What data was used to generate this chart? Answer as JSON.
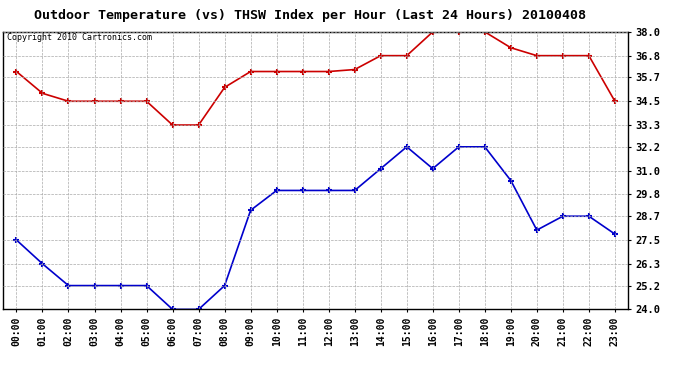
{
  "title": "Outdoor Temperature (vs) THSW Index per Hour (Last 24 Hours) 20100408",
  "copyright": "Copyright 2010 Cartronics.com",
  "hours": [
    "00:00",
    "01:00",
    "02:00",
    "03:00",
    "04:00",
    "05:00",
    "06:00",
    "07:00",
    "08:00",
    "09:00",
    "10:00",
    "11:00",
    "12:00",
    "13:00",
    "14:00",
    "15:00",
    "16:00",
    "17:00",
    "18:00",
    "19:00",
    "20:00",
    "21:00",
    "22:00",
    "23:00"
  ],
  "red_data": [
    36.0,
    34.9,
    34.5,
    34.5,
    34.5,
    34.5,
    33.3,
    33.3,
    35.2,
    36.0,
    36.0,
    36.0,
    36.0,
    36.1,
    36.8,
    36.8,
    38.0,
    38.0,
    38.0,
    37.2,
    36.8,
    36.8,
    36.8,
    34.5
  ],
  "blue_data": [
    27.5,
    26.3,
    25.2,
    25.2,
    25.2,
    25.2,
    24.0,
    24.0,
    25.2,
    29.0,
    30.0,
    30.0,
    30.0,
    30.0,
    31.1,
    32.2,
    31.1,
    32.2,
    32.2,
    30.5,
    28.0,
    28.7,
    28.7,
    27.8
  ],
  "ylim": [
    24.0,
    38.0
  ],
  "yticks": [
    24.0,
    25.2,
    26.3,
    27.5,
    28.7,
    29.8,
    31.0,
    32.2,
    33.3,
    34.5,
    35.7,
    36.8,
    38.0
  ],
  "red_color": "#cc0000",
  "blue_color": "#0000cc",
  "background_color": "#ffffff",
  "grid_color": "#aaaaaa",
  "title_fontsize": 9.5,
  "copyright_fontsize": 6.0,
  "tick_fontsize": 7.0
}
